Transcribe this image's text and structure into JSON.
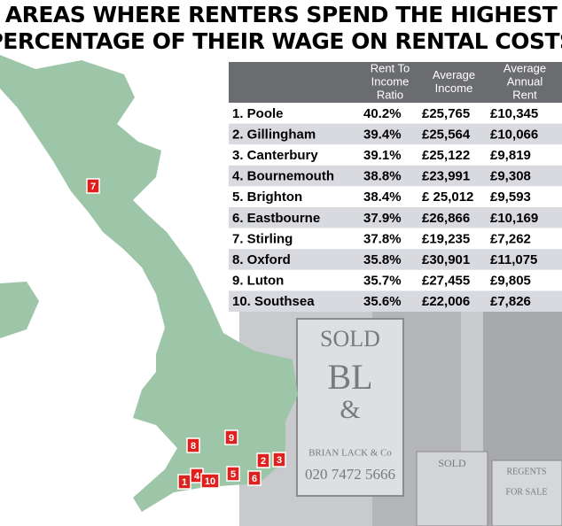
{
  "header": {
    "title": [
      "AREAS WHERE RENTERS SPEND THE HIGHEST",
      "PERCENTAGE OF THEIR WAGE ON RENTAL COSTS"
    ]
  },
  "table": {
    "columns": [
      [
        "Rent To",
        "Income",
        "Ratio"
      ],
      [
        "Average",
        "Income"
      ],
      [
        "Average",
        "Annual",
        "Rent"
      ]
    ],
    "rows": [
      [
        "1. Poole",
        "40.2%",
        "£25,765",
        "£10,345"
      ],
      [
        "2. Gillingham",
        "39.4%",
        "£25,564",
        "£10,066"
      ],
      [
        "3. Canterbury",
        "39.1%",
        "£25,122",
        "£9,819"
      ],
      [
        "4. Bournemouth",
        "38.8%",
        "£23,991",
        "£9,308"
      ],
      [
        "5. Brighton",
        "38.4%",
        "£ 25,012",
        "£9,593"
      ],
      [
        "6. Eastbourne",
        "37.9%",
        "£26,866",
        "£10,169"
      ],
      [
        "7. Stirling",
        "37.8%",
        "£19,235",
        "£7,262"
      ],
      [
        "8. Oxford",
        "35.8%",
        "£30,901",
        "£11,075"
      ],
      [
        "9. Luton",
        "35.7%",
        "£27,455",
        "£9,805"
      ],
      [
        "10. Southsea",
        "35.6%",
        "£22,006",
        "£7,826"
      ]
    ]
  },
  "map": {
    "markers": [
      "1",
      "2",
      "3",
      "4",
      "5",
      "6",
      "7",
      "8",
      "9",
      "10"
    ]
  },
  "photo": {
    "texts": [
      "SOLD",
      "BL",
      "&",
      "BRIAN LACK & Co",
      "020 7472 5666",
      "SOLD",
      "REGENTS",
      "FOR SALE"
    ]
  }
}
